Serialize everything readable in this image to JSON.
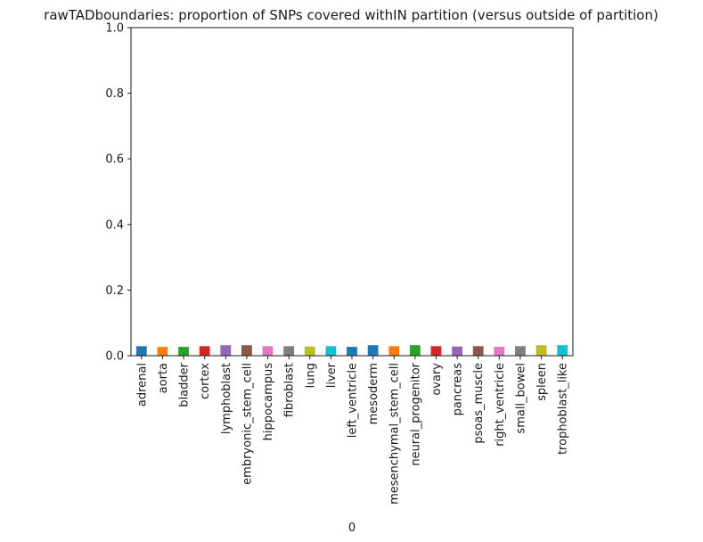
{
  "chart_data": {
    "type": "bar",
    "title": "rawTADboundaries: proportion of SNPs covered withIN partition (versus outside of partition)",
    "xlabel": "0",
    "ylabel": "",
    "ylim": [
      0,
      1.0
    ],
    "yticks": [
      "0.0",
      "0.2",
      "0.4",
      "0.6",
      "0.8",
      "1.0"
    ],
    "ytick_values": [
      0,
      0.2,
      0.4,
      0.6,
      0.8,
      1.0
    ],
    "grid": false,
    "legend": "none",
    "categories": [
      "adrenal",
      "aorta",
      "bladder",
      "cortex",
      "lymphoblast",
      "embryonic_stem_cell",
      "hippocampus",
      "fibroblast",
      "lung",
      "liver",
      "left_ventricle",
      "mesoderm",
      "mesenchymal_stem_cell",
      "neural_progenitor",
      "ovary",
      "pancreas",
      "psoas_muscle",
      "right_ventricle",
      "small_bowel",
      "spleen",
      "trophoblast_like"
    ],
    "values": [
      0.029,
      0.027,
      0.027,
      0.029,
      0.032,
      0.032,
      0.029,
      0.029,
      0.028,
      0.029,
      0.027,
      0.032,
      0.029,
      0.032,
      0.029,
      0.028,
      0.029,
      0.027,
      0.029,
      0.032,
      0.032
    ],
    "colors": [
      "#1f77b4",
      "#ff7f0e",
      "#2ca02c",
      "#d62728",
      "#9467bd",
      "#8c564b",
      "#e377c2",
      "#7f7f7f",
      "#bcbd22",
      "#17becf",
      "#1f77b4",
      "#1f77b4",
      "#ff7f0e",
      "#2ca02c",
      "#d62728",
      "#9467bd",
      "#8c564b",
      "#e377c2",
      "#7f7f7f",
      "#bcbd22",
      "#17becf"
    ]
  }
}
